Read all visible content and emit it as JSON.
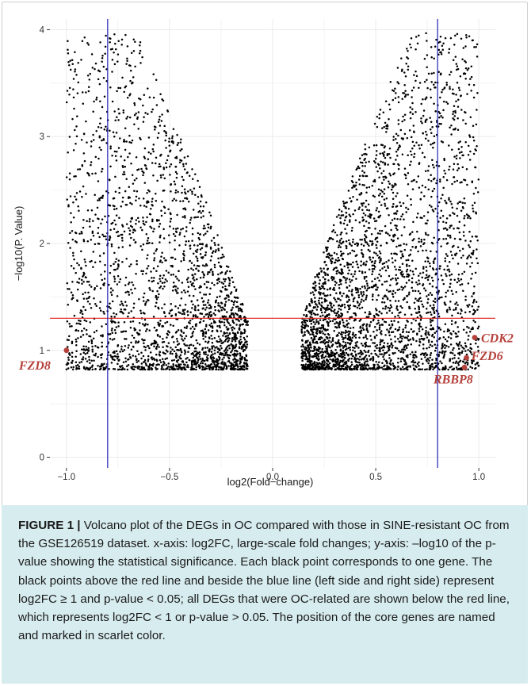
{
  "chart_data": {
    "type": "scatter",
    "title": "",
    "xlabel": "log2(Fold−change)",
    "ylabel": "−log10(P. Value)",
    "xlim": [
      -1.08,
      1.08
    ],
    "ylim": [
      -0.1,
      4.1
    ],
    "x_ticks": [
      -1.0,
      -0.5,
      0.0,
      0.5,
      1.0
    ],
    "x_tick_labels": [
      "−1.0",
      "−0.5",
      "0.0",
      "0.5",
      "1.0"
    ],
    "y_ticks": [
      0,
      1,
      2,
      3,
      4
    ],
    "y_tick_labels": [
      "0",
      "1",
      "2",
      "3",
      "4"
    ],
    "grid": true,
    "colors": {
      "points": "#000000",
      "highlight": "#b5413b",
      "hline": "#e0231d",
      "vline": "#1f22b5",
      "panel": "#ffffff",
      "grid": "#ebebeb"
    },
    "threshold_lines": {
      "horizontal": {
        "y": 1.3,
        "color": "red"
      },
      "vertical": [
        {
          "x": -0.8,
          "color": "blue"
        },
        {
          "x": 0.8,
          "color": "blue"
        }
      ]
    },
    "series_clouds": [
      {
        "side": "left",
        "x_range": [
          -1.0,
          -0.12
        ],
        "y_range": [
          0.82,
          3.97
        ],
        "approx_points": 2400
      },
      {
        "side": "right",
        "x_range": [
          0.14,
          1.0
        ],
        "y_range": [
          0.82,
          3.97
        ],
        "approx_points": 3100
      }
    ],
    "highlighted_genes": [
      {
        "name": "FZD8",
        "x": -1.0,
        "y": 1.0
      },
      {
        "name": "CDK2",
        "x": 0.98,
        "y": 1.12
      },
      {
        "name": "FZD6",
        "x": 0.94,
        "y": 0.93
      },
      {
        "name": "RBBP8",
        "x": 0.93,
        "y": 0.84
      }
    ]
  },
  "caption": {
    "label": "FIGURE 1 |",
    "text": " Volcano plot of the DEGs in OC compared with those in SINE-resistant OC from the GSE126519 dataset. x-axis: log2FC, large-scale fold changes; y-axis: –log10 of the p-value showing the statistical significance. Each black point corresponds to one gene. The black points above the red line and beside the blue line (left side and right side) represent log2FC ≥ 1 and p-value < 0.05; all DEGs that were OC-related are shown below the red line, which represents log2FC < 1 or p-value > 0.05. The position of the core genes are named and marked in scarlet color."
  }
}
